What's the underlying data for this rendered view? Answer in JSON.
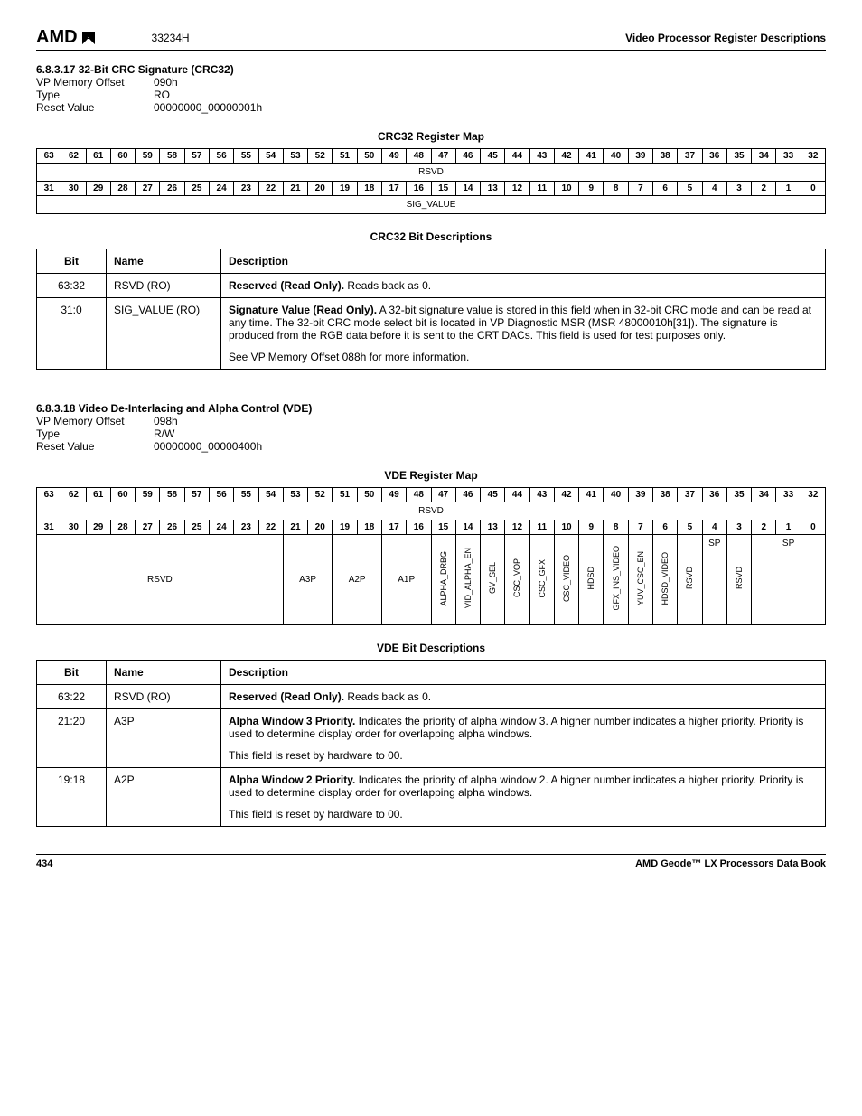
{
  "header": {
    "logo_text": "AMD",
    "doc_id": "33234H",
    "right_title": "Video Processor Register Descriptions"
  },
  "sec1": {
    "heading": "6.8.3.17   32-Bit CRC Signature (CRC32)",
    "offset_label": "VP Memory Offset",
    "offset_value": "090h",
    "type_label": "Type",
    "type_value": "RO",
    "reset_label": "Reset Value",
    "reset_value": "00000000_00000001h",
    "map_title": "CRC32 Register Map",
    "row1_bits": [
      "63",
      "62",
      "61",
      "60",
      "59",
      "58",
      "57",
      "56",
      "55",
      "54",
      "53",
      "52",
      "51",
      "50",
      "49",
      "48",
      "47",
      "46",
      "45",
      "44",
      "43",
      "42",
      "41",
      "40",
      "39",
      "38",
      "37",
      "36",
      "35",
      "34",
      "33",
      "32"
    ],
    "row1_field": "RSVD",
    "row2_bits": [
      "31",
      "30",
      "29",
      "28",
      "27",
      "26",
      "25",
      "24",
      "23",
      "22",
      "21",
      "20",
      "19",
      "18",
      "17",
      "16",
      "15",
      "14",
      "13",
      "12",
      "11",
      "10",
      "9",
      "8",
      "7",
      "6",
      "5",
      "4",
      "3",
      "2",
      "1",
      "0"
    ],
    "row2_field": "SIG_VALUE",
    "desc_title": "CRC32 Bit Descriptions",
    "desc_headers": [
      "Bit",
      "Name",
      "Description"
    ],
    "desc_rows": [
      {
        "bit": "63:32",
        "name": "RSVD (RO)",
        "desc_bold": "Reserved (Read Only).",
        "desc_rest": " Reads back as 0."
      },
      {
        "bit": "31:0",
        "name": "SIG_VALUE (RO)",
        "desc_bold": "Signature Value (Read Only).",
        "desc_rest": " A 32-bit signature value is stored in this field when in 32-bit CRC mode and can be read at any time. The 32-bit CRC mode select bit is located in VP Diagnostic MSR (MSR 48000010h[31]). The signature is produced from the RGB data before it is sent to the CRT DACs. This field is used for test purposes only.",
        "desc_extra": "See VP Memory Offset 088h for more information."
      }
    ]
  },
  "sec2": {
    "heading": "6.8.3.18   Video De-Interlacing and Alpha Control (VDE)",
    "offset_label": "VP Memory Offset",
    "offset_value": "098h",
    "type_label": "Type",
    "type_value": "R/W",
    "reset_label": "Reset Value",
    "reset_value": "00000000_00000400h",
    "map_title": "VDE Register Map",
    "row1_bits": [
      "63",
      "62",
      "61",
      "60",
      "59",
      "58",
      "57",
      "56",
      "55",
      "54",
      "53",
      "52",
      "51",
      "50",
      "49",
      "48",
      "47",
      "46",
      "45",
      "44",
      "43",
      "42",
      "41",
      "40",
      "39",
      "38",
      "37",
      "36",
      "35",
      "34",
      "33",
      "32"
    ],
    "row1_field": "RSVD",
    "row2_bits": [
      "31",
      "30",
      "29",
      "28",
      "27",
      "26",
      "25",
      "24",
      "23",
      "22",
      "21",
      "20",
      "19",
      "18",
      "17",
      "16",
      "15",
      "14",
      "13",
      "12",
      "11",
      "10",
      "9",
      "8",
      "7",
      "6",
      "5",
      "4",
      "3",
      "2",
      "1",
      "0"
    ],
    "fields2": {
      "rsvd": "RSVD",
      "a3p": "A3P",
      "a2p": "A2P",
      "a1p": "A1P",
      "v15": "ALPHA_DRBG",
      "v14": "VID_ALPHA_EN",
      "v13": "GV_SEL",
      "v12": "CSC_VOP",
      "v11": "CSC_GFX",
      "v10": "CSC_VIDEO",
      "v9": "HDSD",
      "v8": "GFX_INS_VIDEO",
      "v7": "YUV_CSC_EN",
      "v6": "HDSD_VIDEO",
      "v5": "RSVD",
      "v4": "SP",
      "v3": "RSVD",
      "sp10": "SP"
    },
    "desc_title": "VDE Bit Descriptions",
    "desc_headers": [
      "Bit",
      "Name",
      "Description"
    ],
    "desc_rows": [
      {
        "bit": "63:22",
        "name": "RSVD (RO)",
        "desc_bold": "Reserved (Read Only).",
        "desc_rest": " Reads back as 0."
      },
      {
        "bit": "21:20",
        "name": "A3P",
        "desc_bold": "Alpha Window 3 Priority.",
        "desc_rest": " Indicates the priority of alpha window 3. A higher number indicates a higher priority. Priority is used to determine display order for overlapping alpha windows.",
        "desc_extra": "This field is reset by hardware to 00."
      },
      {
        "bit": "19:18",
        "name": "A2P",
        "desc_bold": "Alpha Window 2 Priority.",
        "desc_rest": " Indicates the priority of alpha window 2. A higher number indicates a higher priority. Priority is used to determine display order for overlapping alpha windows.",
        "desc_extra": "This field is reset by hardware to 00."
      }
    ]
  },
  "footer": {
    "page": "434",
    "book": "AMD Geode™ LX Processors Data Book"
  }
}
